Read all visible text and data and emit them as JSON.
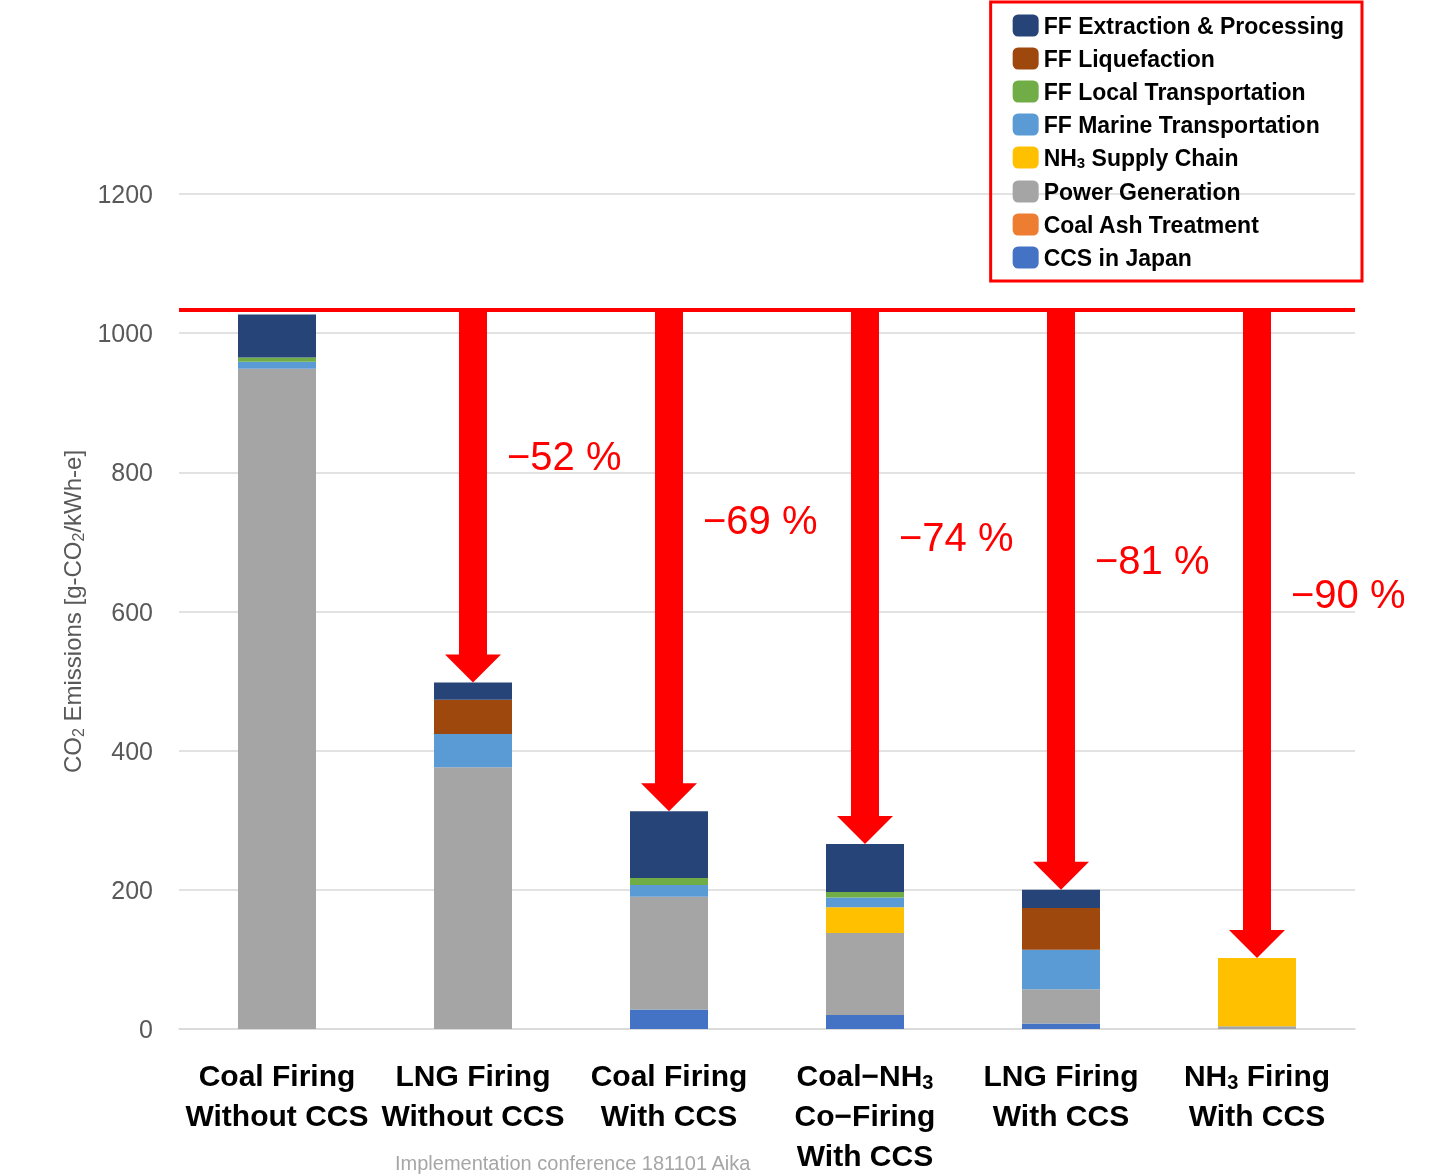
{
  "chart_data": {
    "type": "bar",
    "stacked": true,
    "ylabel": "CO$_{2}$ Emissions [g-CO$_{2}$/kWh-e]",
    "categories": [
      "Coal Firing\nWithout CCS",
      "LNG Firing\nWithout CCS",
      "Coal Firing\nWith CCS",
      "Coal−NH$_{3}$\nCo−Firing\nWith CCS",
      "LNG Firing\nWith CCS",
      "NH$_{3}$ Firing\nWith CCS"
    ],
    "series": [
      {
        "name": "CCS in Japan",
        "color": "#4472c4",
        "values": [
          0,
          0,
          28,
          20,
          8,
          0
        ]
      },
      {
        "name": "Coal Ash Treatment",
        "color": "#ed7d31",
        "values": [
          0,
          0,
          0,
          0,
          0,
          0
        ]
      },
      {
        "name": "Power Generation",
        "color": "#a5a5a5",
        "values": [
          949,
          376,
          162,
          118,
          49,
          4
        ]
      },
      {
        "name": "NH$_{3}$ Supply Chain",
        "color": "#ffc000",
        "values": [
          0,
          0,
          0,
          37,
          0,
          98
        ]
      },
      {
        "name": "FF Marine Transportation",
        "color": "#5b9bd5",
        "values": [
          10,
          48,
          17,
          14,
          57,
          0
        ]
      },
      {
        "name": "FF Local Transportation",
        "color": "#70ad47",
        "values": [
          6,
          0,
          10,
          8,
          0,
          0
        ]
      },
      {
        "name": "FF Liquefaction",
        "color": "#9e480e",
        "values": [
          0,
          49,
          0,
          0,
          60,
          0
        ]
      },
      {
        "name": "FF Extraction & Processing",
        "color": "#264478",
        "values": [
          62,
          25,
          96,
          69,
          26,
          0
        ]
      }
    ],
    "ylim": [
      0,
      1200
    ],
    "yticks": [
      0,
      200,
      400,
      600,
      800,
      1000,
      1200
    ],
    "grid": "y",
    "legend": "top right",
    "ref_lines": [
      {
        "axis": "y",
        "value": 1034,
        "color": "#ff0000"
      }
    ],
    "annotations": [
      "−52 %",
      "−69 %",
      "−74 %",
      "−81 %",
      "−90 %",
      "Implementation conference 181101 Aika"
    ]
  }
}
